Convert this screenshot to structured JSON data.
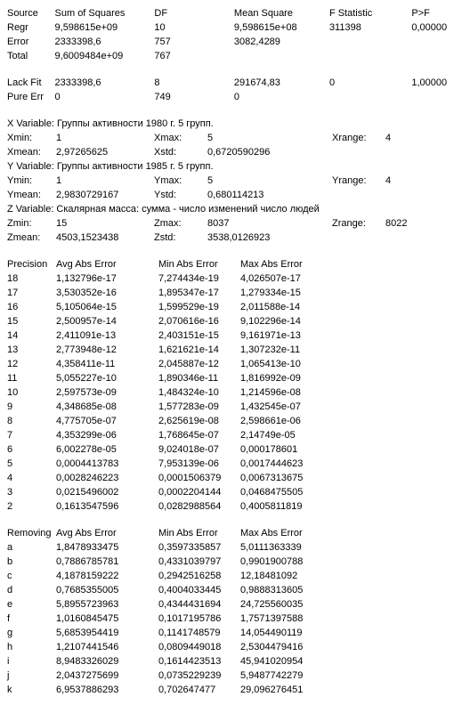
{
  "anova": {
    "head": [
      "Source",
      "Sum of Squares",
      "DF",
      "Mean Square",
      "F Statistic",
      "P>F"
    ],
    "rows": [
      [
        "Regr",
        "9,598615e+09",
        "10",
        "9,598615e+08",
        "311398",
        "0,00000"
      ],
      [
        "Error",
        "2333398,6",
        "757",
        "3082,4289",
        "",
        ""
      ],
      [
        "Total",
        "9,6009484e+09",
        "767",
        "",
        "",
        ""
      ]
    ],
    "extra": [
      [
        "Lack Fit",
        "2333398,6",
        "8",
        "291674,83",
        "0",
        "1,00000"
      ],
      [
        "Pure Err",
        "0",
        "749",
        "0",
        "",
        ""
      ]
    ]
  },
  "vars": {
    "x": {
      "label": "X Variable: Группы активности 1980 г. 5 групп.",
      "r1": [
        "Xmin:",
        "1",
        "Xmax:",
        "5",
        "Xrange:",
        "4"
      ],
      "r2": [
        "Xmean:",
        "2,97265625",
        "Xstd:",
        "0,6720590296",
        "",
        ""
      ]
    },
    "y": {
      "label": "Y Variable: Группы активности 1985 г. 5 групп.",
      "r1": [
        "Ymin:",
        "1",
        "Ymax:",
        "5",
        "Yrange:",
        "4"
      ],
      "r2": [
        "Ymean:",
        "2,9830729167",
        "Ystd:",
        "0,680114213",
        "",
        ""
      ]
    },
    "z": {
      "label": "Z Variable: Скалярная масса: сумма - число изменений  число людей",
      "r1": [
        "Zmin:",
        "15",
        "Zmax:",
        "8037",
        "Zrange:",
        "8022"
      ],
      "r2": [
        "Zmean:",
        "4503,1523438",
        "Zstd:",
        "3538,0126923",
        "",
        ""
      ]
    }
  },
  "prec": {
    "head": [
      "Precision",
      "Avg Abs Error",
      "Min Abs Error",
      "Max Abs Error"
    ],
    "rows": [
      [
        "18",
        "1,132796e-17",
        "7,274434e-19",
        "4,026507e-17"
      ],
      [
        "17",
        "3,530352e-16",
        "1,895347e-17",
        "1,279334e-15"
      ],
      [
        "16",
        "5,105064e-15",
        "1,599529e-19",
        "2,011588e-14"
      ],
      [
        "15",
        "2,500957e-14",
        "2,070616e-16",
        "9,102296e-14"
      ],
      [
        "14",
        "2,411091e-13",
        "2,403151e-15",
        "9,161971e-13"
      ],
      [
        "13",
        "2,773948e-12",
        "1,621621e-14",
        "1,307232e-11"
      ],
      [
        "12",
        "4,358411e-11",
        "2,045887e-12",
        "1,065413e-10"
      ],
      [
        "11",
        "5,055227e-10",
        "1,890346e-11",
        "1,816992e-09"
      ],
      [
        "10",
        "2,597573e-09",
        "1,484324e-10",
        "1,214596e-08"
      ],
      [
        "9",
        "4,348685e-08",
        "1,577283e-09",
        "1,432545e-07"
      ],
      [
        "8",
        "4,775705e-07",
        "2,625619e-08",
        "2,598661e-06"
      ],
      [
        "7",
        "4,353299e-06",
        "1,768645e-07",
        "2,14749e-05"
      ],
      [
        "6",
        "6,002278e-05",
        "9,024018e-07",
        "0,000178601"
      ],
      [
        "5",
        "0,0004413783",
        "7,953139e-06",
        "0,0017444623"
      ],
      [
        "4",
        "0,0028246223",
        "0,0001506379",
        "0,0067313675"
      ],
      [
        "3",
        "0,0215496002",
        "0,0002204144",
        "0,0468475505"
      ],
      [
        "2",
        "0,1613547596",
        "0,0282988564",
        "0,4005811819"
      ]
    ]
  },
  "rem": {
    "head": [
      "Removing",
      "Avg Abs Error",
      "Min Abs Error",
      "Max Abs Error"
    ],
    "rows": [
      [
        "a",
        "1,8478933475",
        "0,3597335857",
        "5,0111363339"
      ],
      [
        "b",
        "0,7886785781",
        "0,4331039797",
        "0,9901900788"
      ],
      [
        "c",
        "4,1878159222",
        "0,2942516258",
        "12,18481092"
      ],
      [
        "d",
        "0,7685355005",
        "0,4004033445",
        "0,9888313605"
      ],
      [
        "e",
        "5,8955723963",
        "0,4344431694",
        "24,725560035"
      ],
      [
        "f",
        "1,0160845475",
        "0,1017195786",
        "1,7571397588"
      ],
      [
        "g",
        "5,6853954419",
        "0,1141748579",
        "14,054490119"
      ],
      [
        "h",
        "1,2107441546",
        "0,0809449018",
        "2,5304479416"
      ],
      [
        "i",
        "8,9483326029",
        "0,1614423513",
        "45,941020954"
      ],
      [
        "j",
        "2,0437275699",
        "0,0735229239",
        "5,9487742279"
      ],
      [
        "k",
        "6,9537886293",
        "0,702647477",
        "29,096276451"
      ]
    ]
  }
}
